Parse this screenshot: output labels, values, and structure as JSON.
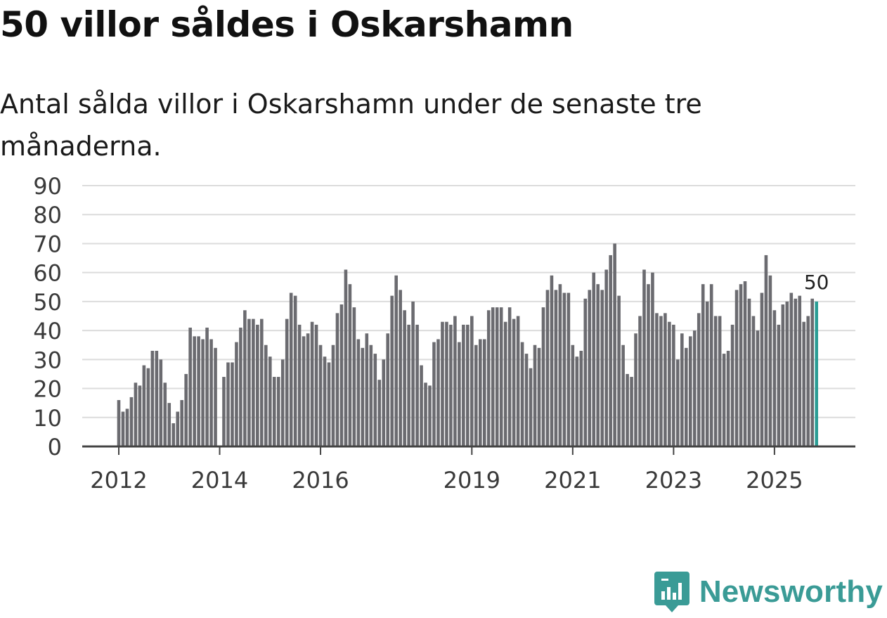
{
  "title": "50 villor såldes i Oskarshamn",
  "subtitle": "Antal sålda villor i Oskarshamn under de senaste tre månaderna.",
  "brand": "Newsworthy",
  "colors": {
    "bar": "#6b6b70",
    "highlight": "#2a9d95",
    "grid": "#dcdcdc",
    "axis": "#444444",
    "brand": "#3a9b96"
  },
  "chart_data": {
    "type": "bar",
    "title": "50 villor såldes i Oskarshamn",
    "xlabel": "",
    "ylabel": "",
    "ylim": [
      0,
      90
    ],
    "yticks": [
      0,
      10,
      20,
      30,
      40,
      50,
      60,
      70,
      80,
      90
    ],
    "start": "2012-01",
    "xtick_labels": [
      {
        "index": 0,
        "label": "2012"
      },
      {
        "index": 24,
        "label": "2014"
      },
      {
        "index": 48,
        "label": "2016"
      },
      {
        "index": 84,
        "label": "2019"
      },
      {
        "index": 108,
        "label": "2021"
      },
      {
        "index": 132,
        "label": "2023"
      },
      {
        "index": 156,
        "label": "2025"
      }
    ],
    "values": [
      16,
      12,
      13,
      17,
      22,
      21,
      28,
      27,
      33,
      33,
      30,
      22,
      15,
      8,
      12,
      16,
      25,
      41,
      38,
      38,
      37,
      41,
      37,
      34,
      null,
      24,
      29,
      29,
      36,
      41,
      47,
      44,
      44,
      42,
      44,
      35,
      31,
      24,
      24,
      30,
      44,
      53,
      52,
      42,
      38,
      39,
      43,
      42,
      35,
      31,
      29,
      35,
      46,
      49,
      61,
      56,
      48,
      37,
      34,
      39,
      35,
      32,
      23,
      30,
      39,
      52,
      59,
      54,
      47,
      42,
      50,
      42,
      28,
      22,
      21,
      36,
      37,
      43,
      43,
      42,
      45,
      36,
      42,
      42,
      45,
      35,
      37,
      37,
      47,
      48,
      48,
      48,
      43,
      48,
      44,
      45,
      36,
      32,
      27,
      35,
      34,
      48,
      54,
      59,
      54,
      56,
      53,
      53,
      35,
      31,
      33,
      51,
      54,
      60,
      56,
      54,
      61,
      66,
      70,
      52,
      35,
      25,
      24,
      39,
      45,
      61,
      56,
      60,
      46,
      45,
      46,
      43,
      42,
      30,
      39,
      34,
      38,
      40,
      46,
      56,
      50,
      56,
      45,
      45,
      32,
      33,
      42,
      54,
      56,
      57,
      51,
      45,
      40,
      53,
      66,
      59,
      47,
      42,
      49,
      50,
      53,
      51,
      52,
      43,
      45,
      51,
      50
    ],
    "highlight": {
      "index": 166,
      "value": 50,
      "label": "50"
    }
  }
}
